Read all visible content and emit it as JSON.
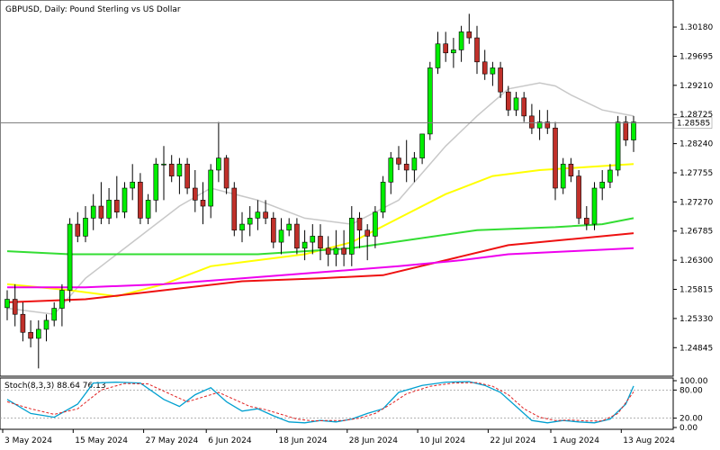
{
  "chart_data": {
    "type": "candlestick",
    "title": "GBPUSD, Daily:  Pound Sterling vs US Dollar",
    "price_axis_ticks": [
      "1.30180",
      "1.29695",
      "1.29210",
      "1.28725",
      "1.28240",
      "1.27755",
      "1.27270",
      "1.26785",
      "1.26300",
      "1.25815",
      "1.25330",
      "1.24845"
    ],
    "current_price": "1.28585",
    "x_ticks": [
      {
        "label": "3 May 2024",
        "index": 0
      },
      {
        "label": "15 May 2024",
        "index": 9
      },
      {
        "label": "27 May 2024",
        "index": 18
      },
      {
        "label": "6 Jun 2024",
        "index": 26
      },
      {
        "label": "18 Jun 2024",
        "index": 35
      },
      {
        "label": "28 Jun 2024",
        "index": 44
      },
      {
        "label": "10 Jul 2024",
        "index": 53
      },
      {
        "label": "22 Jul 2024",
        "index": 62
      },
      {
        "label": "1 Aug 2024",
        "index": 70
      },
      {
        "label": "13 Aug 2024",
        "index": 79
      }
    ],
    "ylim": [
      1.2437,
      1.3063
    ],
    "candles": [
      [
        1.2551,
        1.258,
        1.253,
        1.2565
      ],
      [
        1.2565,
        1.259,
        1.252,
        1.254
      ],
      [
        1.254,
        1.256,
        1.2495,
        1.251
      ],
      [
        1.251,
        1.253,
        1.2485,
        1.25
      ],
      [
        1.25,
        1.253,
        1.245,
        1.2515
      ],
      [
        1.2515,
        1.254,
        1.2495,
        1.253
      ],
      [
        1.253,
        1.256,
        1.252,
        1.255
      ],
      [
        1.255,
        1.259,
        1.252,
        1.258
      ],
      [
        1.258,
        1.27,
        1.256,
        1.269
      ],
      [
        1.269,
        1.271,
        1.266,
        1.267
      ],
      [
        1.267,
        1.272,
        1.266,
        1.27
      ],
      [
        1.27,
        1.274,
        1.268,
        1.272
      ],
      [
        1.272,
        1.276,
        1.269,
        1.27
      ],
      [
        1.27,
        1.275,
        1.269,
        1.273
      ],
      [
        1.273,
        1.277,
        1.27,
        1.271
      ],
      [
        1.271,
        1.276,
        1.27,
        1.275
      ],
      [
        1.275,
        1.279,
        1.273,
        1.276
      ],
      [
        1.276,
        1.2775,
        1.269,
        1.27
      ],
      [
        1.27,
        1.274,
        1.269,
        1.273
      ],
      [
        1.273,
        1.28,
        1.271,
        1.279
      ],
      [
        1.279,
        1.282,
        1.273,
        1.279
      ],
      [
        1.279,
        1.2805,
        1.276,
        1.277
      ],
      [
        1.277,
        1.28,
        1.274,
        1.279
      ],
      [
        1.279,
        1.28,
        1.274,
        1.275
      ],
      [
        1.275,
        1.278,
        1.271,
        1.273
      ],
      [
        1.273,
        1.276,
        1.269,
        1.272
      ],
      [
        1.272,
        1.279,
        1.27,
        1.278
      ],
      [
        1.278,
        1.286,
        1.276,
        1.28
      ],
      [
        1.28,
        1.2805,
        1.274,
        1.275
      ],
      [
        1.275,
        1.276,
        1.267,
        1.268
      ],
      [
        1.268,
        1.271,
        1.266,
        1.269
      ],
      [
        1.269,
        1.272,
        1.267,
        1.27
      ],
      [
        1.27,
        1.273,
        1.268,
        1.271
      ],
      [
        1.271,
        1.273,
        1.269,
        1.27
      ],
      [
        1.27,
        1.271,
        1.265,
        1.266
      ],
      [
        1.266,
        1.27,
        1.264,
        1.268
      ],
      [
        1.268,
        1.27,
        1.267,
        1.269
      ],
      [
        1.269,
        1.27,
        1.264,
        1.265
      ],
      [
        1.265,
        1.268,
        1.263,
        1.266
      ],
      [
        1.266,
        1.269,
        1.264,
        1.267
      ],
      [
        1.267,
        1.269,
        1.263,
        1.265
      ],
      [
        1.265,
        1.267,
        1.262,
        1.264
      ],
      [
        1.264,
        1.268,
        1.262,
        1.265
      ],
      [
        1.265,
        1.268,
        1.262,
        1.264
      ],
      [
        1.264,
        1.272,
        1.262,
        1.27
      ],
      [
        1.27,
        1.271,
        1.265,
        1.268
      ],
      [
        1.268,
        1.269,
        1.263,
        1.267
      ],
      [
        1.267,
        1.272,
        1.265,
        1.271
      ],
      [
        1.271,
        1.277,
        1.27,
        1.276
      ],
      [
        1.276,
        1.281,
        1.274,
        1.28
      ],
      [
        1.28,
        1.282,
        1.278,
        1.279
      ],
      [
        1.279,
        1.283,
        1.276,
        1.278
      ],
      [
        1.278,
        1.281,
        1.276,
        1.28
      ],
      [
        1.28,
        1.284,
        1.279,
        1.284
      ],
      [
        1.284,
        1.296,
        1.283,
        1.295
      ],
      [
        1.295,
        1.301,
        1.294,
        1.299
      ],
      [
        1.299,
        1.301,
        1.296,
        1.2975
      ],
      [
        1.2975,
        1.3,
        1.295,
        1.298
      ],
      [
        1.298,
        1.302,
        1.296,
        1.301
      ],
      [
        1.301,
        1.304,
        1.299,
        1.3
      ],
      [
        1.3,
        1.302,
        1.294,
        1.296
      ],
      [
        1.296,
        1.298,
        1.293,
        1.294
      ],
      [
        1.294,
        1.296,
        1.292,
        1.295
      ],
      [
        1.295,
        1.296,
        1.29,
        1.291
      ],
      [
        1.291,
        1.292,
        1.287,
        1.288
      ],
      [
        1.288,
        1.291,
        1.287,
        1.29
      ],
      [
        1.29,
        1.291,
        1.286,
        1.287
      ],
      [
        1.287,
        1.289,
        1.284,
        1.285
      ],
      [
        1.285,
        1.288,
        1.283,
        1.286
      ],
      [
        1.286,
        1.288,
        1.284,
        1.285
      ],
      [
        1.285,
        1.286,
        1.273,
        1.275
      ],
      [
        1.275,
        1.28,
        1.274,
        1.279
      ],
      [
        1.279,
        1.28,
        1.276,
        1.277
      ],
      [
        1.277,
        1.278,
        1.269,
        1.27
      ],
      [
        1.27,
        1.272,
        1.268,
        1.269
      ],
      [
        1.269,
        1.276,
        1.268,
        1.275
      ],
      [
        1.275,
        1.278,
        1.273,
        1.276
      ],
      [
        1.276,
        1.279,
        1.275,
        1.278
      ],
      [
        1.278,
        1.287,
        1.277,
        1.286
      ],
      [
        1.286,
        1.287,
        1.282,
        1.283
      ],
      [
        1.283,
        1.287,
        1.281,
        1.286
      ]
    ],
    "moving_averages": [
      {
        "color": "#c8c8c8",
        "points": [
          [
            0,
            1.255
          ],
          [
            6,
            1.254
          ],
          [
            10,
            1.26
          ],
          [
            16,
            1.266
          ],
          [
            22,
            1.272
          ],
          [
            26,
            1.275
          ],
          [
            32,
            1.273
          ],
          [
            38,
            1.27
          ],
          [
            44,
            1.269
          ],
          [
            50,
            1.273
          ],
          [
            56,
            1.282
          ],
          [
            60,
            1.287
          ],
          [
            64,
            1.2915
          ],
          [
            68,
            1.2925
          ],
          [
            70,
            1.292
          ],
          [
            72,
            1.2905
          ],
          [
            76,
            1.288
          ],
          [
            80,
            1.287
          ]
        ]
      },
      {
        "color": "#ffff00",
        "points": [
          [
            0,
            1.259
          ],
          [
            8,
            1.258
          ],
          [
            14,
            1.257
          ],
          [
            20,
            1.259
          ],
          [
            26,
            1.262
          ],
          [
            32,
            1.263
          ],
          [
            38,
            1.264
          ],
          [
            44,
            1.266
          ],
          [
            50,
            1.27
          ],
          [
            56,
            1.274
          ],
          [
            62,
            1.277
          ],
          [
            68,
            1.278
          ],
          [
            74,
            1.2785
          ],
          [
            80,
            1.279
          ]
        ]
      },
      {
        "color": "#33dd33",
        "points": [
          [
            0,
            1.2645
          ],
          [
            8,
            1.264
          ],
          [
            20,
            1.264
          ],
          [
            32,
            1.264
          ],
          [
            44,
            1.265
          ],
          [
            52,
            1.2665
          ],
          [
            60,
            1.268
          ],
          [
            70,
            1.2685
          ],
          [
            76,
            1.269
          ],
          [
            80,
            1.27
          ]
        ]
      },
      {
        "color": "#ee1111",
        "points": [
          [
            0,
            1.256
          ],
          [
            10,
            1.2565
          ],
          [
            20,
            1.258
          ],
          [
            30,
            1.2595
          ],
          [
            40,
            1.26
          ],
          [
            48,
            1.2605
          ],
          [
            56,
            1.263
          ],
          [
            64,
            1.2655
          ],
          [
            72,
            1.2665
          ],
          [
            80,
            1.2675
          ]
        ]
      },
      {
        "color": "#ee00ee",
        "points": [
          [
            0,
            1.2585
          ],
          [
            10,
            1.2585
          ],
          [
            20,
            1.259
          ],
          [
            30,
            1.26
          ],
          [
            40,
            1.261
          ],
          [
            50,
            1.262
          ],
          [
            58,
            1.263
          ],
          [
            64,
            1.264
          ],
          [
            72,
            1.2645
          ],
          [
            80,
            1.265
          ]
        ]
      }
    ],
    "stochastic": {
      "label": "Stoch(8,3,3) 88.64 76.13",
      "levels": [
        "100.00",
        "80.00",
        "20.00",
        "0.00"
      ],
      "main": [
        [
          0,
          60
        ],
        [
          3,
          30
        ],
        [
          6,
          22
        ],
        [
          9,
          50
        ],
        [
          11,
          95
        ],
        [
          14,
          97
        ],
        [
          17,
          95
        ],
        [
          20,
          60
        ],
        [
          22,
          45
        ],
        [
          24,
          70
        ],
        [
          26,
          85
        ],
        [
          28,
          55
        ],
        [
          30,
          35
        ],
        [
          32,
          40
        ],
        [
          34,
          25
        ],
        [
          36,
          12
        ],
        [
          38,
          10
        ],
        [
          40,
          15
        ],
        [
          42,
          12
        ],
        [
          44,
          18
        ],
        [
          46,
          30
        ],
        [
          48,
          40
        ],
        [
          50,
          75
        ],
        [
          53,
          90
        ],
        [
          56,
          97
        ],
        [
          59,
          98
        ],
        [
          61,
          90
        ],
        [
          63,
          75
        ],
        [
          65,
          45
        ],
        [
          67,
          15
        ],
        [
          69,
          10
        ],
        [
          71,
          15
        ],
        [
          73,
          12
        ],
        [
          75,
          10
        ],
        [
          77,
          18
        ],
        [
          79,
          50
        ],
        [
          80,
          88.64
        ]
      ],
      "signal": [
        [
          0,
          55
        ],
        [
          3,
          40
        ],
        [
          6,
          28
        ],
        [
          9,
          40
        ],
        [
          12,
          80
        ],
        [
          15,
          94
        ],
        [
          18,
          93
        ],
        [
          21,
          70
        ],
        [
          23,
          55
        ],
        [
          25,
          65
        ],
        [
          27,
          75
        ],
        [
          29,
          60
        ],
        [
          31,
          45
        ],
        [
          33,
          38
        ],
        [
          35,
          28
        ],
        [
          37,
          18
        ],
        [
          39,
          14
        ],
        [
          41,
          15
        ],
        [
          43,
          15
        ],
        [
          45,
          20
        ],
        [
          47,
          30
        ],
        [
          49,
          50
        ],
        [
          51,
          72
        ],
        [
          54,
          88
        ],
        [
          57,
          95
        ],
        [
          60,
          96
        ],
        [
          62,
          88
        ],
        [
          64,
          70
        ],
        [
          66,
          40
        ],
        [
          68,
          22
        ],
        [
          70,
          15
        ],
        [
          72,
          16
        ],
        [
          74,
          14
        ],
        [
          76,
          14
        ],
        [
          78,
          30
        ],
        [
          80,
          76.13
        ]
      ]
    }
  }
}
